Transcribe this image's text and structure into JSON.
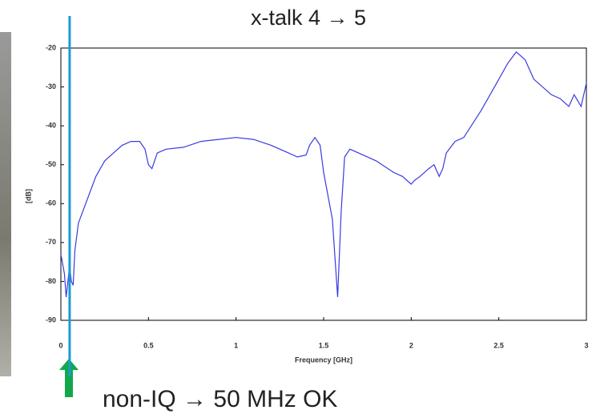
{
  "chart_data": {
    "type": "line",
    "title": "x-talk 4 → 5",
    "annotation": "non-IQ → 50 MHz OK",
    "y_label": "[dB]",
    "x_label": "Frequency [GHz]",
    "marker_x": 0.05,
    "x": [
      0,
      0.02,
      0.03,
      0.05,
      0.06,
      0.07,
      0.08,
      0.1,
      0.15,
      0.2,
      0.25,
      0.3,
      0.35,
      0.4,
      0.45,
      0.48,
      0.5,
      0.52,
      0.55,
      0.6,
      0.7,
      0.8,
      0.9,
      1.0,
      1.1,
      1.2,
      1.3,
      1.35,
      1.4,
      1.42,
      1.45,
      1.48,
      1.5,
      1.55,
      1.58,
      1.6,
      1.62,
      1.65,
      1.7,
      1.8,
      1.9,
      1.95,
      2.0,
      2.02,
      2.05,
      2.1,
      2.13,
      2.16,
      2.18,
      2.2,
      2.25,
      2.3,
      2.4,
      2.5,
      2.55,
      2.6,
      2.65,
      2.7,
      2.8,
      2.85,
      2.9,
      2.93,
      2.97,
      3.0
    ],
    "series": [
      {
        "color": "#3a3ae0",
        "values": [
          -73,
          -78,
          -84,
          -76,
          -80,
          -81,
          -72,
          -65,
          -59,
          -53,
          -49,
          -47,
          -45,
          -44,
          -44,
          -46,
          -50,
          -51,
          -47,
          -46,
          -45.5,
          -44,
          -43.5,
          -43,
          -43.5,
          -45,
          -47,
          -48,
          -47.5,
          -45,
          -43,
          -45,
          -52,
          -64,
          -84,
          -62,
          -48,
          -46,
          -47,
          -49,
          -52,
          -53,
          -55,
          -54,
          -53,
          -51,
          -50,
          -53,
          -51,
          -47,
          -44,
          -43,
          -36,
          -28,
          -24,
          -21,
          -23,
          -28,
          -32,
          -33,
          -35,
          -32,
          -35,
          -29
        ]
      }
    ],
    "xlim": [
      0,
      3
    ],
    "xticks": [
      0,
      0.5,
      1,
      1.5,
      2,
      2.5,
      3
    ],
    "ylim": [
      -90,
      -20
    ],
    "yticks": [
      -20,
      -30,
      -40,
      -50,
      -60,
      -70,
      -80,
      -90
    ]
  }
}
